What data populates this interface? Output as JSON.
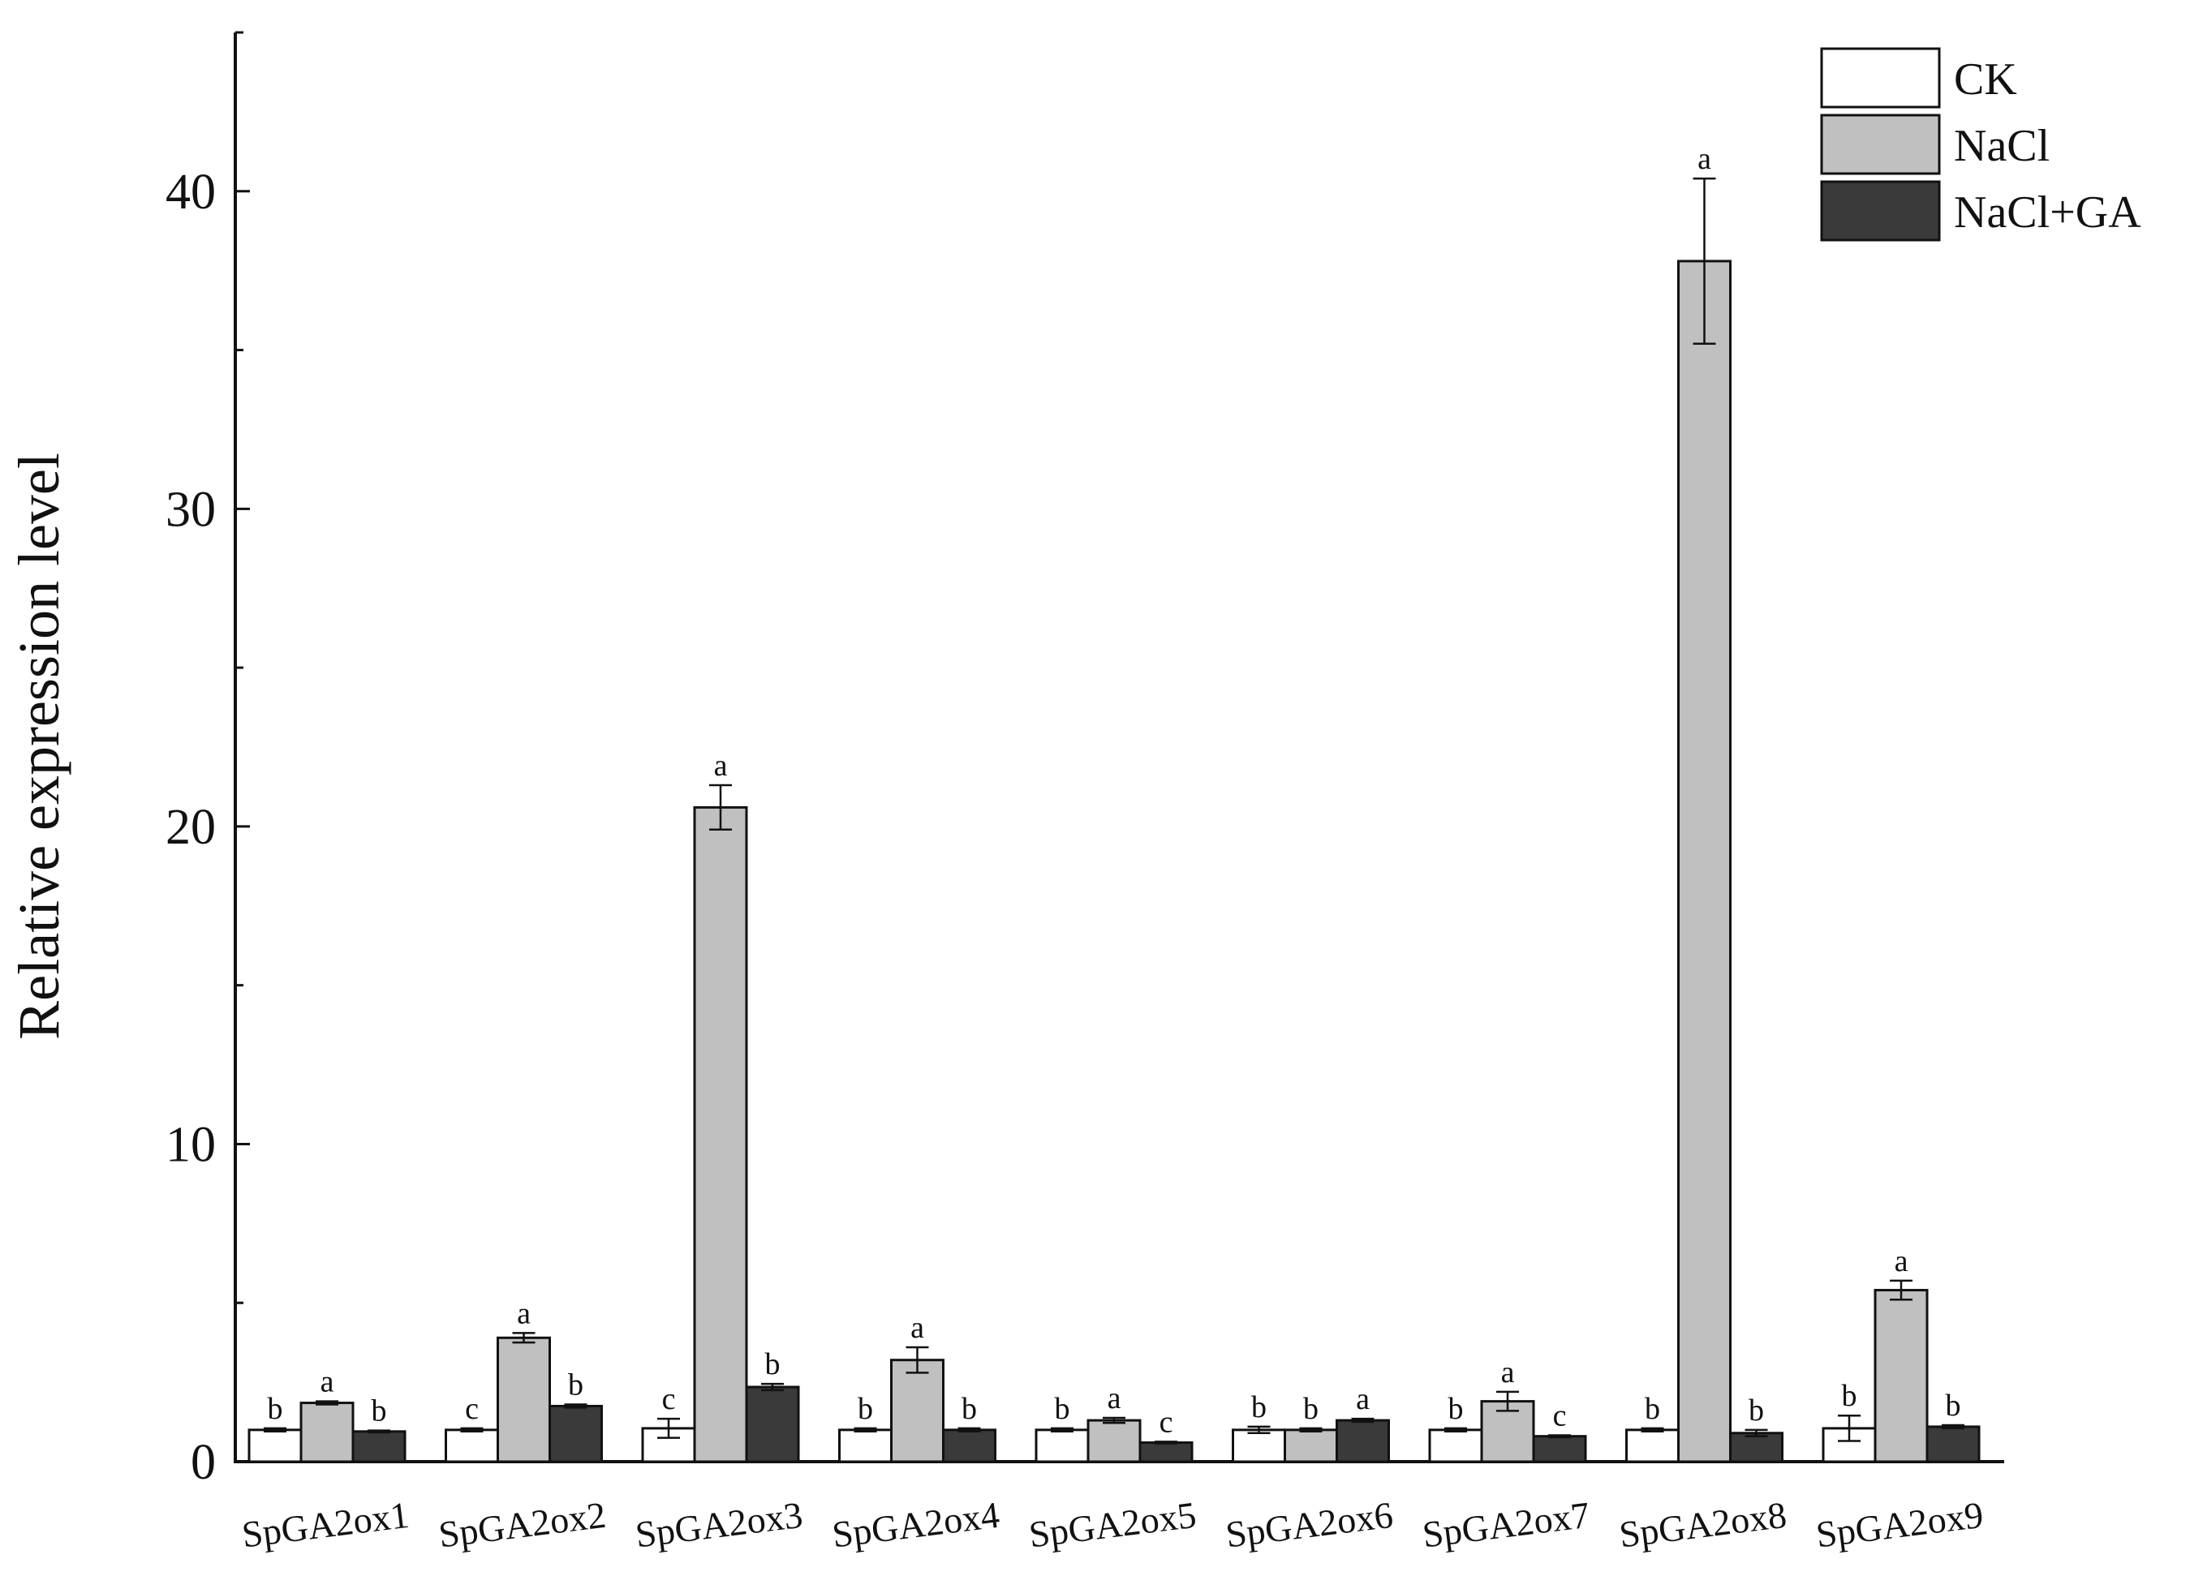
{
  "chart_data": {
    "type": "bar",
    "title": "",
    "xlabel": "",
    "ylabel": "Relative expression level",
    "ylim": [
      0,
      45
    ],
    "yticks": [
      0,
      10,
      20,
      30,
      40
    ],
    "grid": false,
    "legend_position": "top-right",
    "categories": [
      "SpGA2ox1",
      "SpGA2ox2",
      "SpGA2ox3",
      "SpGA2ox4",
      "SpGA2ox5",
      "SpGA2ox6",
      "SpGA2ox7",
      "SpGA2ox8",
      "SpGA2ox9"
    ],
    "series": [
      {
        "name": "CK",
        "color": "#ffffff",
        "values": [
          1.0,
          1.0,
          1.05,
          1.0,
          1.0,
          1.0,
          1.0,
          1.0,
          1.05
        ],
        "errors": [
          0.05,
          0.05,
          0.3,
          0.05,
          0.05,
          0.1,
          0.05,
          0.05,
          0.4
        ],
        "significance": [
          "b",
          "c",
          "c",
          "b",
          "b",
          "b",
          "b",
          "b",
          "b"
        ]
      },
      {
        "name": "NaCl",
        "color": "#c0c0c0",
        "values": [
          1.85,
          3.9,
          20.6,
          3.2,
          1.3,
          1.0,
          1.9,
          37.8,
          5.4
        ],
        "errors": [
          0.05,
          0.15,
          0.7,
          0.4,
          0.08,
          0.05,
          0.3,
          2.6,
          0.3
        ],
        "significance": [
          "a",
          "a",
          "a",
          "a",
          "a",
          "b",
          "a",
          "a",
          "a"
        ]
      },
      {
        "name": "NaCl+GA",
        "color": "#3a3a3a",
        "values": [
          0.95,
          1.75,
          2.35,
          1.0,
          0.6,
          1.3,
          0.8,
          0.9,
          1.1
        ],
        "errors": [
          0.03,
          0.05,
          0.1,
          0.05,
          0.03,
          0.05,
          0.03,
          0.1,
          0.05
        ],
        "significance": [
          "b",
          "b",
          "b",
          "b",
          "c",
          "a",
          "c",
          "b",
          "b"
        ]
      }
    ]
  }
}
